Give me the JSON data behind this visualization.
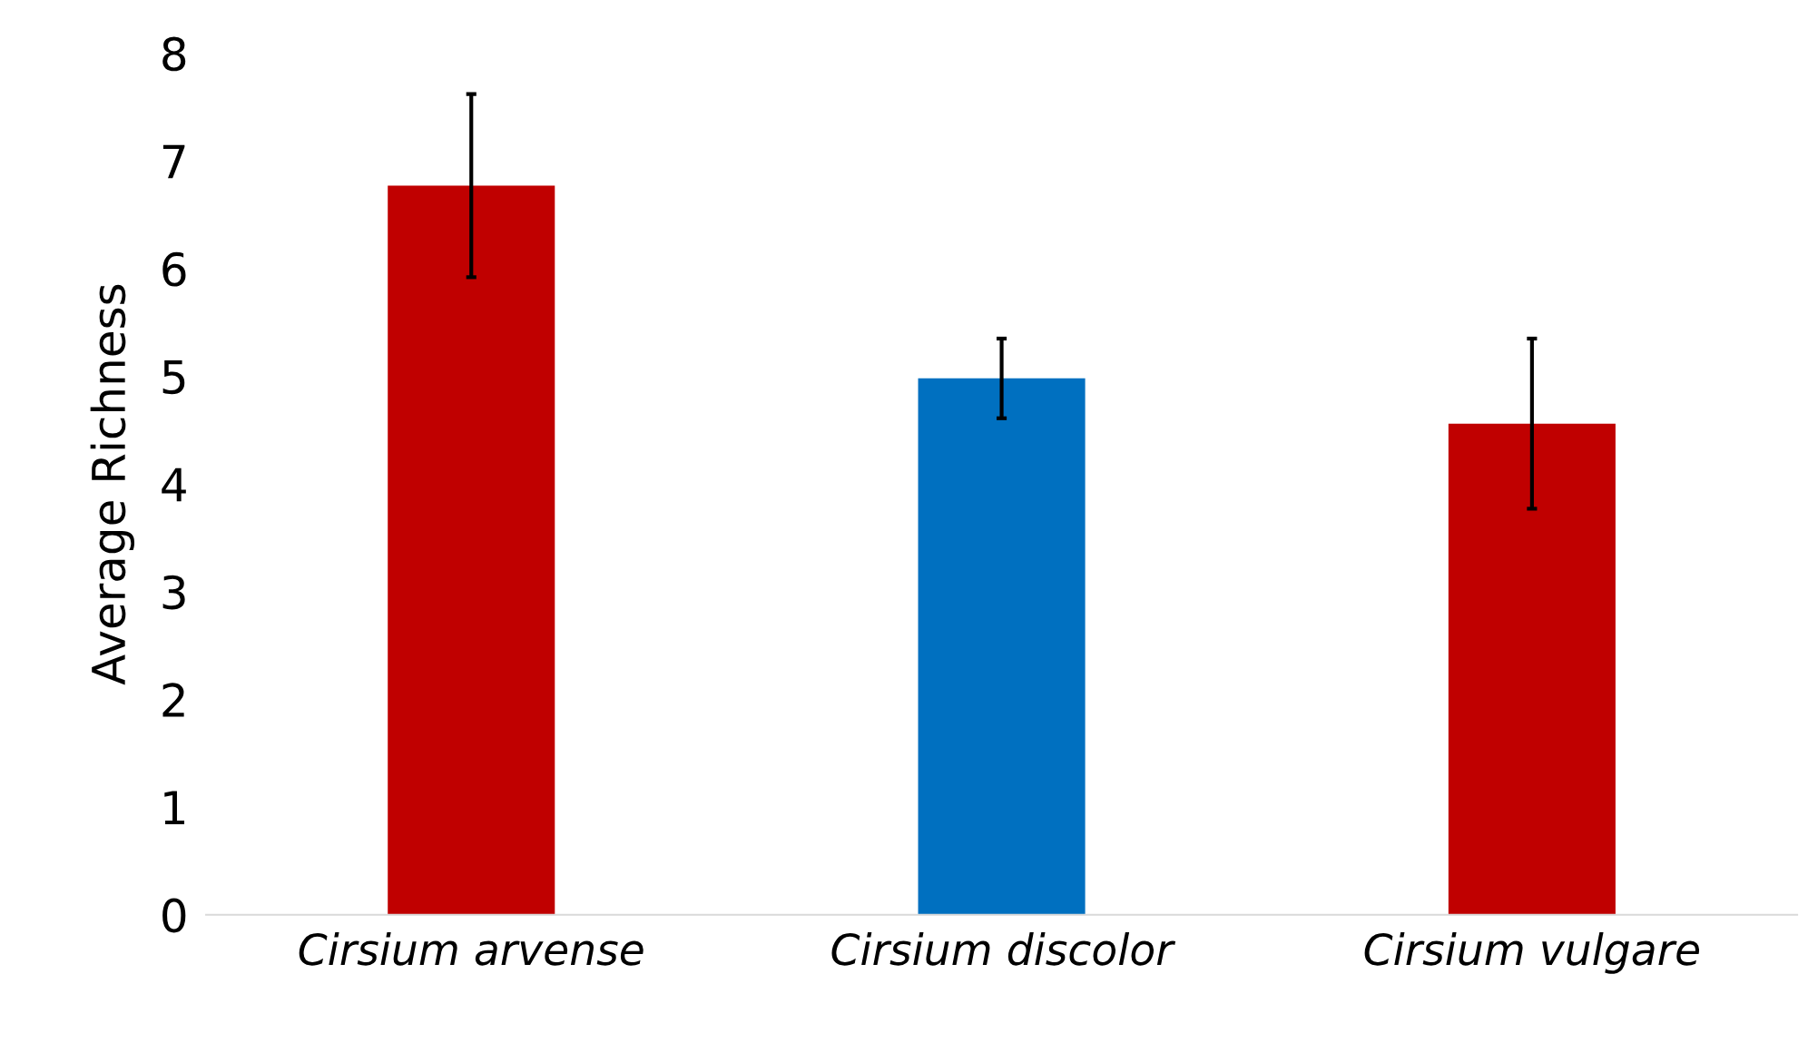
{
  "chart_data": {
    "type": "bar",
    "ylabel": "Average Richness",
    "categories": [
      "Cirsium arvense",
      "Cirsium discolor",
      "Cirsium vulgare"
    ],
    "values": [
      6.77,
      4.98,
      4.56
    ],
    "errors": [
      0.85,
      0.37,
      0.79
    ],
    "colors": [
      "#c00000",
      "#0070c0",
      "#c00000"
    ],
    "ylim": [
      0,
      8
    ],
    "yticks": [
      0,
      1,
      2,
      3,
      4,
      5,
      6,
      7,
      8
    ],
    "grid": false,
    "legend": false
  }
}
